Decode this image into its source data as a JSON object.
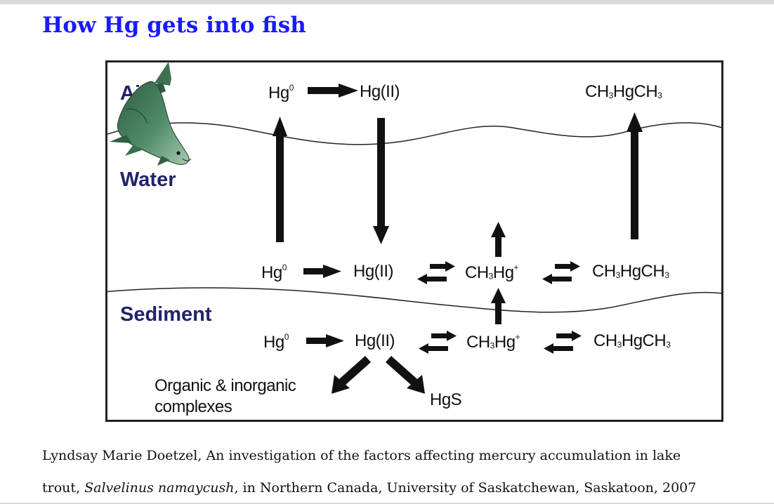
{
  "page": {
    "title": "How Hg gets into fish"
  },
  "diagram": {
    "zones": {
      "air": "Air",
      "water": "Water",
      "sediment": "Sediment"
    },
    "air": {
      "hg0": "Hg",
      "hg0_sup": "0",
      "hg2": "Hg(II)",
      "dmhg_a": "CH",
      "dmhg_sub1": "3",
      "dmhg_b": "HgCH",
      "dmhg_sub2": "3"
    },
    "water": {
      "hg0": "Hg",
      "hg0_sup": "0",
      "hg2": "Hg(II)",
      "mehg_a": "CH",
      "mehg_sub": "3",
      "mehg_b": "Hg",
      "mehg_sup": "+",
      "dmhg_a": "CH",
      "dmhg_sub1": "3",
      "dmhg_b": "HgCH",
      "dmhg_sub2": "3"
    },
    "sediment": {
      "hg0": "Hg",
      "hg0_sup": "0",
      "hg2": "Hg(II)",
      "mehg_a": "CH",
      "mehg_sub": "3",
      "mehg_b": "Hg",
      "mehg_sup": "+",
      "dmhg_a": "CH",
      "dmhg_sub1": "3",
      "dmhg_b": "HgCH",
      "dmhg_sub2": "3"
    },
    "complexes_line1": "Organic & inorganic",
    "complexes_line2": "complexes",
    "hgs": "HgS",
    "fish_icon": "fish"
  },
  "caption": {
    "line1": "Lyndsay Marie Doetzel, An investigation of the factors affecting mercury accumulation in lake",
    "line2_pre": "trout, ",
    "line2_italic": "Salvelinus namaycush",
    "line2_post": ", in Northern Canada, University of Saskatchewan, Saskatoon, 2007"
  }
}
